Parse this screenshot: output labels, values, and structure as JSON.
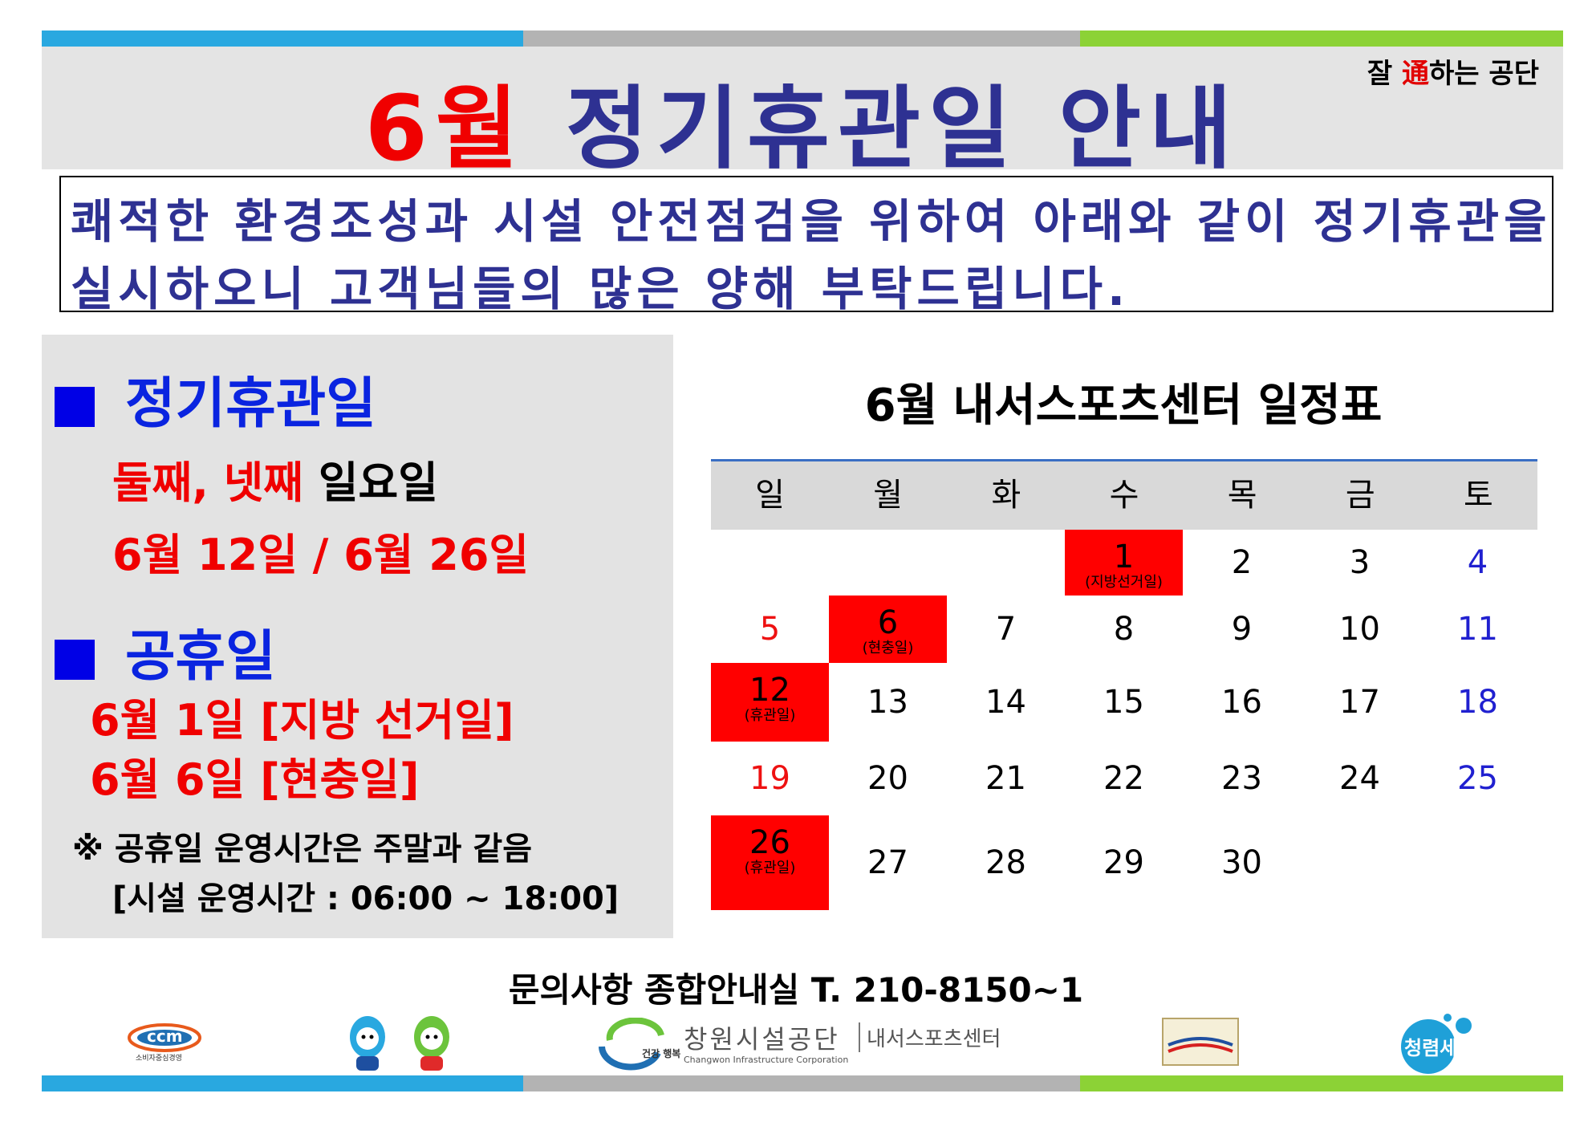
{
  "header": {
    "title_month": "6월",
    "title_main": "정기휴관일 안내",
    "slogan_pre": "잘 ",
    "slogan_mid": "通",
    "slogan_post": "하는 공단"
  },
  "notice": {
    "line1": "쾌적한 환경조성과 시설 안전점검을 위하여 아래와 같이 정기휴관을",
    "line2": "실시하오니 고객님들의 많은 양해 부탁드립니다."
  },
  "left": {
    "section1_title": "정기휴관일",
    "days_red": "둘째, 넷째 ",
    "days_black": "일요일",
    "dates": "6월 12일 / 6월 26일",
    "section2_title": "공휴일",
    "holiday1": "6월 1일 [지방 선거일]",
    "holiday2": "6월 6일 [현충일]",
    "note1": "※ 공휴일 운영시간은 주말과 같음",
    "note2": "[시설 운영시간 : 06:00 ~ 18:00]"
  },
  "calendar": {
    "title": "6월 내서스포츠센터 일정표",
    "weekdays": [
      "일",
      "월",
      "화",
      "수",
      "목",
      "금",
      "토"
    ],
    "rows": [
      [
        null,
        null,
        null,
        {
          "day": "1",
          "note": "(지방선거일)",
          "holiday": true
        },
        {
          "day": "2"
        },
        {
          "day": "3"
        },
        {
          "day": "4"
        }
      ],
      [
        {
          "day": "5"
        },
        {
          "day": "6",
          "note": "(현충일)",
          "holiday": true
        },
        {
          "day": "7"
        },
        {
          "day": "8"
        },
        {
          "day": "9"
        },
        {
          "day": "10"
        },
        {
          "day": "11"
        }
      ],
      [
        {
          "day": "12",
          "note": "(휴관일)",
          "holiday": true
        },
        {
          "day": "13"
        },
        {
          "day": "14"
        },
        {
          "day": "15"
        },
        {
          "day": "16"
        },
        {
          "day": "17"
        },
        {
          "day": "18"
        }
      ],
      [
        {
          "day": "19"
        },
        {
          "day": "20"
        },
        {
          "day": "21"
        },
        {
          "day": "22"
        },
        {
          "day": "23"
        },
        {
          "day": "24"
        },
        {
          "day": "25"
        }
      ],
      [
        {
          "day": "26",
          "note": "(휴관일)",
          "holiday": true
        },
        {
          "day": "27"
        },
        {
          "day": "28"
        },
        {
          "day": "29"
        },
        {
          "day": "30"
        },
        null,
        null
      ]
    ]
  },
  "contact": "문의사항   종합안내실 T. 210-8150~1",
  "logos": {
    "ccm": "ccm",
    "ccm_caption": "소비자중심경영",
    "main_org": "창원시설공단",
    "main_org_en": "Changwon Infrastructure Corporation",
    "main_sub": "내서스포츠센터",
    "badge_text": "건강\n행복",
    "slogan_logo": "청렴세상"
  }
}
